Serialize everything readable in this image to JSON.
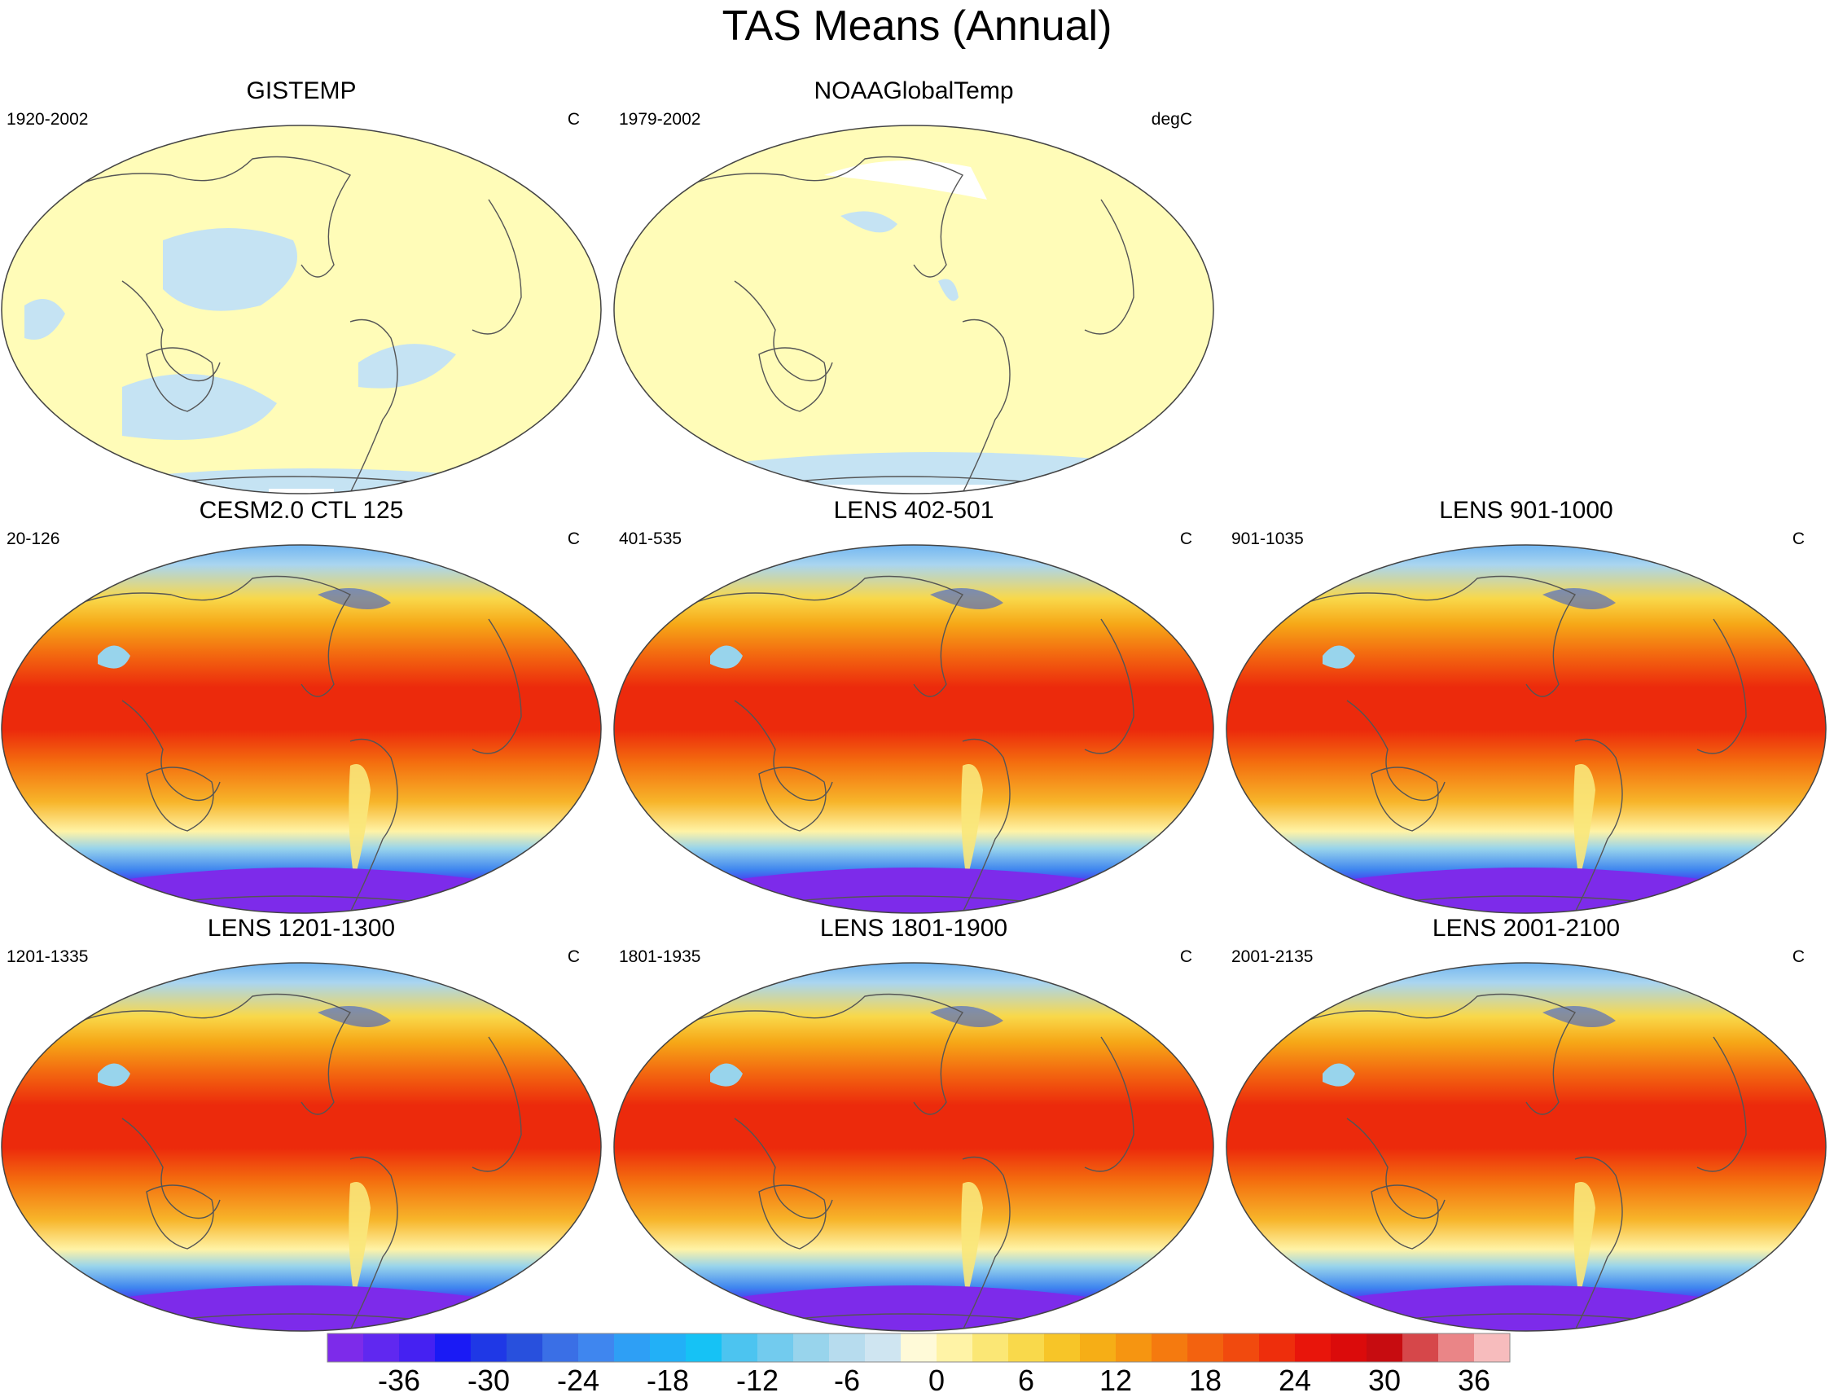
{
  "title": "TAS Means (Annual)",
  "panels": [
    {
      "title": "GISTEMP",
      "period": "1920-2002",
      "units": "C",
      "kind": "obs1"
    },
    {
      "title": "NOAAGlobalTemp",
      "period": "1979-2002",
      "units": "degC",
      "kind": "obs2"
    },
    {
      "title": "CESM2.0 CTL 125",
      "period": "20-126",
      "units": "C",
      "kind": "model"
    },
    {
      "title": "LENS 402-501",
      "period": "401-535",
      "units": "C",
      "kind": "model"
    },
    {
      "title": "LENS 901-1000",
      "period": "901-1035",
      "units": "C",
      "kind": "model"
    },
    {
      "title": "LENS 1201-1300",
      "period": "1201-1335",
      "units": "C",
      "kind": "model"
    },
    {
      "title": "LENS 1801-1900",
      "period": "1801-1935",
      "units": "C",
      "kind": "model"
    },
    {
      "title": "LENS 2001-2100",
      "period": "2001-2135",
      "units": "C",
      "kind": "model"
    }
  ],
  "colorbar": {
    "labels": [
      "-36",
      "-30",
      "-24",
      "-18",
      "-12",
      "-6",
      "0",
      "6",
      "12",
      "18",
      "24",
      "30",
      "36"
    ],
    "colors": [
      "#7d2bea",
      "#6028f0",
      "#4521f2",
      "#1a1af5",
      "#1f38e6",
      "#2850dd",
      "#3a6fe6",
      "#3f86ef",
      "#2e9ff5",
      "#22b0f7",
      "#16c2f5",
      "#4cc4f0",
      "#72cbee",
      "#98d4ec",
      "#b7dcee",
      "#cfe5f1",
      "#fffad8",
      "#fff3a6",
      "#fbe775",
      "#f9d94b",
      "#f7c528",
      "#f6ae16",
      "#f69511",
      "#f57a0f",
      "#f3620f",
      "#f14a0e",
      "#ee2e0c",
      "#e8150b",
      "#db0b0b",
      "#c70c10",
      "#d6474a",
      "#ea8587",
      "#f7bcbd"
    ]
  }
}
